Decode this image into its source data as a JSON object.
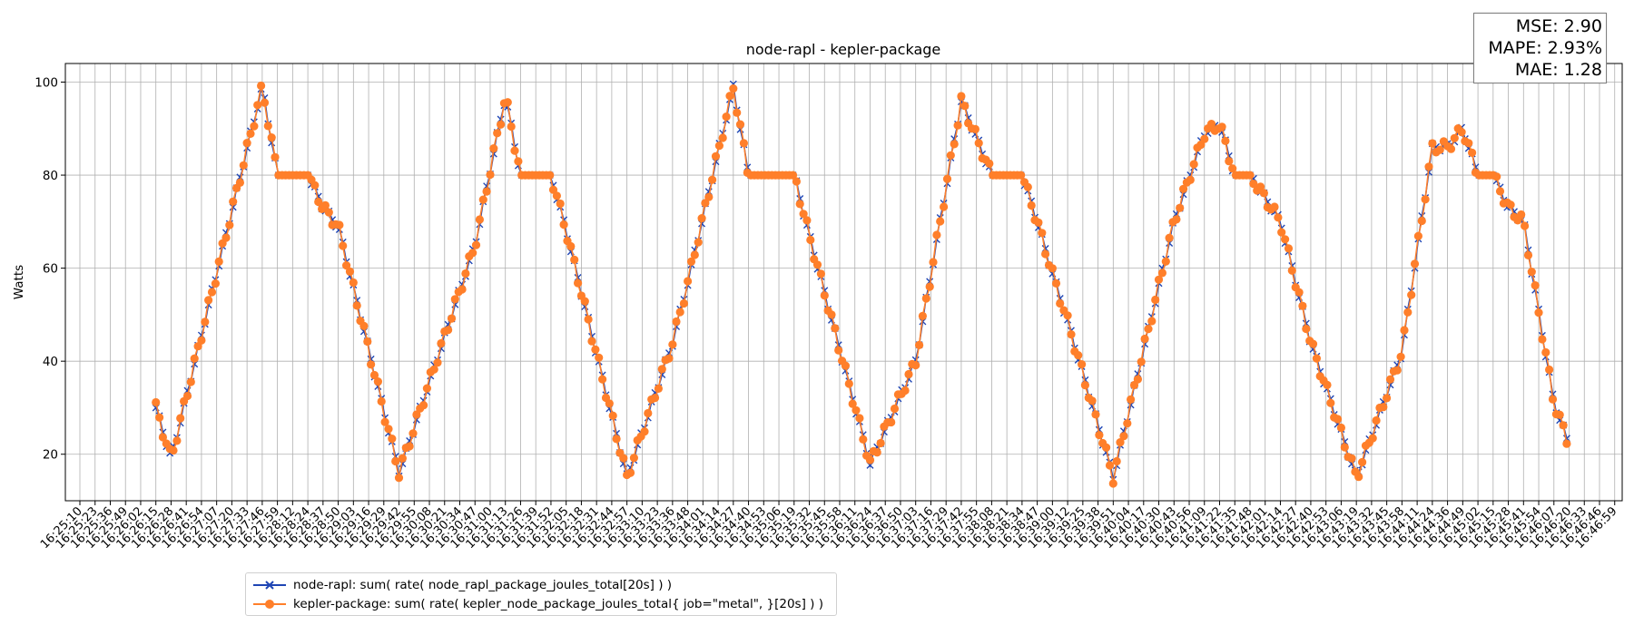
{
  "chart_data": {
    "type": "line",
    "title": "node-rapl - kepler-package",
    "xlabel": "",
    "ylabel": "Watts",
    "ylim": [
      10,
      104
    ],
    "yticks": [
      20,
      40,
      60,
      80,
      100
    ],
    "grid": true,
    "legend_position": "lower-left",
    "x_tick_labels": [
      "16:25:10",
      "16:25:23",
      "16:25:36",
      "16:25:49",
      "16:26:02",
      "16:26:15",
      "16:26:28",
      "16:26:41",
      "16:26:54",
      "16:27:07",
      "16:27:20",
      "16:27:33",
      "16:27:46",
      "16:27:59",
      "16:28:12",
      "16:28:24",
      "16:28:37",
      "16:28:50",
      "16:29:03",
      "16:29:16",
      "16:29:29",
      "16:29:42",
      "16:29:55",
      "16:30:08",
      "16:30:21",
      "16:30:34",
      "16:30:47",
      "16:31:00",
      "16:31:13",
      "16:31:26",
      "16:31:39",
      "16:31:52",
      "16:32:05",
      "16:32:18",
      "16:32:31",
      "16:32:44",
      "16:32:57",
      "16:33:10",
      "16:33:23",
      "16:33:36",
      "16:33:48",
      "16:34:01",
      "16:34:14",
      "16:34:27",
      "16:34:40",
      "16:34:53",
      "16:35:06",
      "16:35:19",
      "16:35:32",
      "16:35:45",
      "16:35:58",
      "16:36:11",
      "16:36:24",
      "16:36:37",
      "16:36:50",
      "16:37:03",
      "16:37:16",
      "16:37:29",
      "16:37:42",
      "16:37:55",
      "16:38:08",
      "16:38:21",
      "16:38:34",
      "16:38:47",
      "16:39:00",
      "16:39:12",
      "16:39:25",
      "16:39:38",
      "16:39:51",
      "16:40:04",
      "16:40:17",
      "16:40:30",
      "16:40:43",
      "16:40:56",
      "16:41:09",
      "16:41:22",
      "16:41:35",
      "16:41:48",
      "16:42:01",
      "16:42:14",
      "16:42:27",
      "16:42:40",
      "16:42:53",
      "16:43:06",
      "16:43:19",
      "16:43:32",
      "16:43:45",
      "16:43:58",
      "16:44:11",
      "16:44:24",
      "16:44:36",
      "16:44:49",
      "16:45:02",
      "16:45:15",
      "16:45:28",
      "16:45:41",
      "16:45:54",
      "16:46:07",
      "16:46:20",
      "16:46:33",
      "16:46:46",
      "16:46:59"
    ],
    "keypoints": [
      {
        "t": "16:26:15",
        "y": 30
      },
      {
        "t": "16:26:28",
        "y": 19
      },
      {
        "t": "16:27:46",
        "y": 99
      },
      {
        "t": "16:27:59",
        "y": 80
      },
      {
        "t": "16:28:24",
        "y": 80
      },
      {
        "t": "16:28:37",
        "y": 73
      },
      {
        "t": "16:28:50",
        "y": 69
      },
      {
        "t": "16:29:42",
        "y": 16
      },
      {
        "t": "16:30:47",
        "y": 65
      },
      {
        "t": "16:31:13",
        "y": 97
      },
      {
        "t": "16:31:26",
        "y": 80
      },
      {
        "t": "16:31:52",
        "y": 80
      },
      {
        "t": "16:32:05",
        "y": 68
      },
      {
        "t": "16:32:57",
        "y": 15
      },
      {
        "t": "16:33:36",
        "y": 44
      },
      {
        "t": "16:34:27",
        "y": 99
      },
      {
        "t": "16:34:40",
        "y": 80
      },
      {
        "t": "16:35:19",
        "y": 80
      },
      {
        "t": "16:35:32",
        "y": 67
      },
      {
        "t": "16:36:24",
        "y": 18
      },
      {
        "t": "16:37:03",
        "y": 40
      },
      {
        "t": "16:37:42",
        "y": 96
      },
      {
        "t": "16:38:08",
        "y": 80
      },
      {
        "t": "16:38:34",
        "y": 80
      },
      {
        "t": "16:38:47",
        "y": 70
      },
      {
        "t": "16:39:51",
        "y": 15
      },
      {
        "t": "16:40:43",
        "y": 70
      },
      {
        "t": "16:41:09",
        "y": 89
      },
      {
        "t": "16:41:22",
        "y": 91
      },
      {
        "t": "16:41:35",
        "y": 80
      },
      {
        "t": "16:41:48",
        "y": 80
      },
      {
        "t": "16:42:14",
        "y": 70
      },
      {
        "t": "16:42:40",
        "y": 44
      },
      {
        "t": "16:43:19",
        "y": 15
      },
      {
        "t": "16:43:58",
        "y": 42
      },
      {
        "t": "16:44:24",
        "y": 86
      },
      {
        "t": "16:44:36",
        "y": 86
      },
      {
        "t": "16:44:49",
        "y": 90
      },
      {
        "t": "16:45:02",
        "y": 80
      },
      {
        "t": "16:45:15",
        "y": 80
      },
      {
        "t": "16:45:28",
        "y": 73
      },
      {
        "t": "16:45:41",
        "y": 70
      },
      {
        "t": "16:46:07",
        "y": 31
      },
      {
        "t": "16:46:20",
        "y": 22
      }
    ],
    "series": [
      {
        "name": "node-rapl: sum( rate( node_rapl_package_joules_total[20s] ) )",
        "color": "#1e45b4",
        "marker": "x"
      },
      {
        "name": "kepler-package: sum( rate( kepler_node_package_joules_total{ job=\"metal\", }[20s] ) )",
        "color": "#ff7f2a",
        "marker": "o"
      }
    ],
    "metrics": {
      "mse": "MSE: 2.90",
      "mape": "MAPE: 2.93%",
      "mae": "MAE: 1.28"
    }
  }
}
